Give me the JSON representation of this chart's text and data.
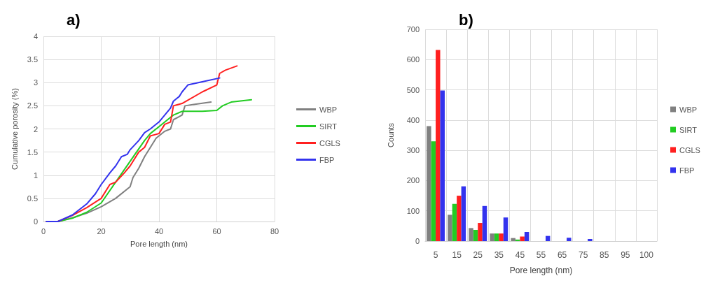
{
  "chart_data": [
    {
      "type": "line",
      "title": "a)",
      "xlabel": "Pore length (nm)",
      "ylabel": "Cumulative porosity (%)",
      "xlim": [
        0,
        80
      ],
      "xticks": [
        0,
        20,
        40,
        60,
        80
      ],
      "ylim": [
        0,
        4
      ],
      "yticks": [
        0,
        0.5,
        1,
        1.5,
        2,
        2.5,
        3,
        3.5,
        4
      ],
      "grid": true,
      "legend": "right",
      "marker": "none",
      "line_style": "solid",
      "series": [
        {
          "name": "WBP",
          "color": "#808080",
          "x": [
            1,
            5,
            10,
            15,
            20,
            25,
            30,
            31,
            33,
            35,
            37,
            39,
            42,
            44,
            45,
            48,
            49,
            52,
            58
          ],
          "values": [
            0,
            0,
            0.08,
            0.18,
            0.32,
            0.5,
            0.75,
            0.95,
            1.15,
            1.4,
            1.6,
            1.8,
            1.95,
            2.0,
            2.2,
            2.3,
            2.5,
            2.53,
            2.58
          ]
        },
        {
          "name": "SIRT",
          "color": "#22cc22",
          "x": [
            1,
            5,
            10,
            15,
            20,
            25,
            30,
            35,
            37,
            40,
            43,
            45,
            48,
            55,
            60,
            62,
            65,
            72
          ],
          "values": [
            0,
            0,
            0.07,
            0.2,
            0.4,
            0.85,
            1.3,
            1.75,
            1.9,
            2.05,
            2.2,
            2.3,
            2.38,
            2.38,
            2.4,
            2.5,
            2.58,
            2.63
          ]
        },
        {
          "name": "CGLS",
          "color": "#ff2020",
          "x": [
            1,
            5,
            10,
            15,
            20,
            23,
            25,
            28,
            30,
            33,
            35,
            37,
            40,
            42,
            44,
            45,
            48,
            50,
            55,
            60,
            61,
            63,
            67
          ],
          "values": [
            0,
            0,
            0.13,
            0.3,
            0.5,
            0.8,
            0.85,
            1.05,
            1.2,
            1.5,
            1.6,
            1.85,
            1.9,
            2.1,
            2.15,
            2.5,
            2.55,
            2.62,
            2.8,
            2.95,
            3.2,
            3.27,
            3.36
          ]
        },
        {
          "name": "FBP",
          "color": "#3333ee",
          "x": [
            1,
            5,
            10,
            15,
            18,
            20,
            23,
            25,
            27,
            29,
            30,
            33,
            35,
            37,
            40,
            42,
            44,
            45,
            47,
            48,
            50,
            55,
            61
          ],
          "values": [
            0,
            0,
            0.14,
            0.38,
            0.6,
            0.8,
            1.05,
            1.2,
            1.4,
            1.45,
            1.55,
            1.75,
            1.92,
            2.0,
            2.15,
            2.3,
            2.45,
            2.6,
            2.7,
            2.8,
            2.95,
            3.02,
            3.1
          ]
        }
      ]
    },
    {
      "type": "bar",
      "title": "b)",
      "xlabel": "Pore length (nm)",
      "ylabel": "Counts",
      "categories": [
        "5",
        "15",
        "25",
        "35",
        "45",
        "55",
        "65",
        "75",
        "85",
        "95",
        "100"
      ],
      "ylim": [
        0,
        700
      ],
      "yticks": [
        0,
        100,
        200,
        300,
        400,
        500,
        600,
        700
      ],
      "grid": true,
      "legend": "right",
      "series": [
        {
          "name": "WBP",
          "color": "#808080",
          "values": [
            380,
            87,
            43,
            25,
            10,
            0,
            0,
            0,
            0,
            0,
            0
          ]
        },
        {
          "name": "SIRT",
          "color": "#22cc22",
          "values": [
            330,
            123,
            37,
            25,
            5,
            0,
            0,
            0,
            0,
            0,
            0
          ]
        },
        {
          "name": "CGLS",
          "color": "#ff2020",
          "values": [
            632,
            150,
            60,
            25,
            15,
            0,
            0,
            0,
            0,
            0,
            0
          ]
        },
        {
          "name": "FBP",
          "color": "#3333ee",
          "values": [
            498,
            181,
            116,
            78,
            30,
            17,
            11,
            7,
            0,
            0,
            0
          ]
        }
      ]
    }
  ]
}
